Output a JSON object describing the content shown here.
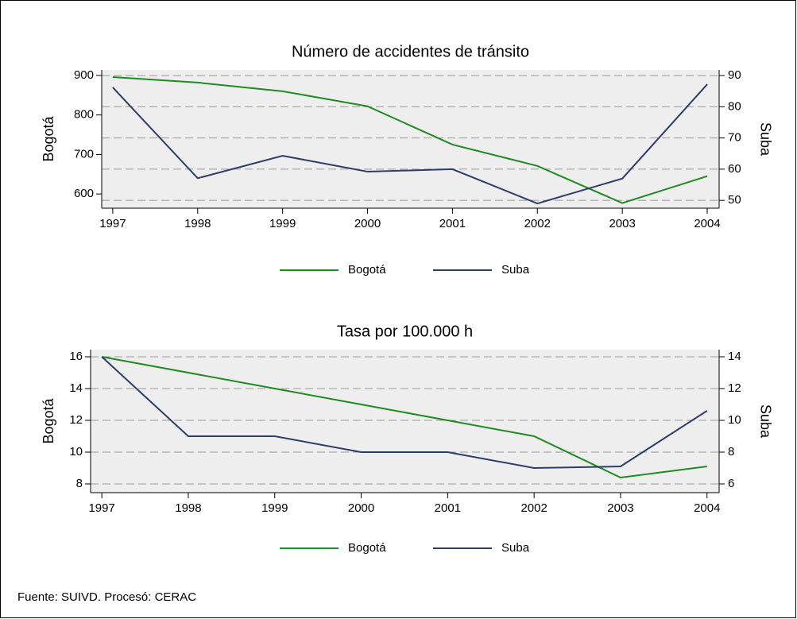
{
  "chart_data": [
    {
      "type": "line",
      "title": "Número de accidentes de tránsito",
      "x": [
        1997,
        1998,
        1999,
        2000,
        2001,
        2002,
        2003,
        2004
      ],
      "xlim": [
        1996.87,
        2004.14
      ],
      "xticks": [
        1997,
        1998,
        1999,
        2000,
        2001,
        2002,
        2003,
        2004
      ],
      "ylabel": "Bogotá",
      "y2label": "Suba",
      "ylim": [
        564,
        914
      ],
      "yticks": [
        600,
        700,
        800,
        900
      ],
      "y2lim": [
        47.5,
        91.8
      ],
      "y2ticks": [
        50,
        60,
        70,
        80,
        90
      ],
      "grid": true,
      "series": [
        {
          "name": "Bogotá",
          "color": "#1e8c1e",
          "values": [
            896,
            882,
            860,
            822,
            725,
            671,
            577,
            645
          ]
        },
        {
          "name": "Suba",
          "color": "#2a3d6b",
          "axis": "y2",
          "values": [
            86.2,
            57.1,
            64.3,
            59.2,
            60,
            49,
            57,
            87.2
          ]
        }
      ]
    },
    {
      "type": "line",
      "title": "Tasa por 100.000 h",
      "x": [
        1997,
        1998,
        1999,
        2000,
        2001,
        2002,
        2003,
        2004
      ],
      "xlim": [
        1996.87,
        2004.14
      ],
      "xticks": [
        1997,
        1998,
        1999,
        2000,
        2001,
        2002,
        2003,
        2004
      ],
      "ylabel": "Bogotá",
      "y2label": "Suba",
      "ylim": [
        7.45,
        16.45
      ],
      "yticks": [
        8,
        10,
        12,
        14,
        16
      ],
      "y2lim": [
        5.45,
        14.45
      ],
      "y2ticks": [
        6,
        8,
        10,
        12,
        14
      ],
      "grid": true,
      "series": [
        {
          "name": "Bogotá",
          "color": "#1e8c1e",
          "values": [
            16,
            15,
            14,
            13,
            12,
            11,
            8.4,
            9.1
          ]
        },
        {
          "name": "Suba",
          "color": "#2a3d6b",
          "axis": "y2",
          "values": [
            14,
            9,
            9,
            8,
            8,
            7,
            7.1,
            10.6
          ]
        }
      ]
    }
  ],
  "note": "Fuente: SUIVD. Procesó: CERAC"
}
